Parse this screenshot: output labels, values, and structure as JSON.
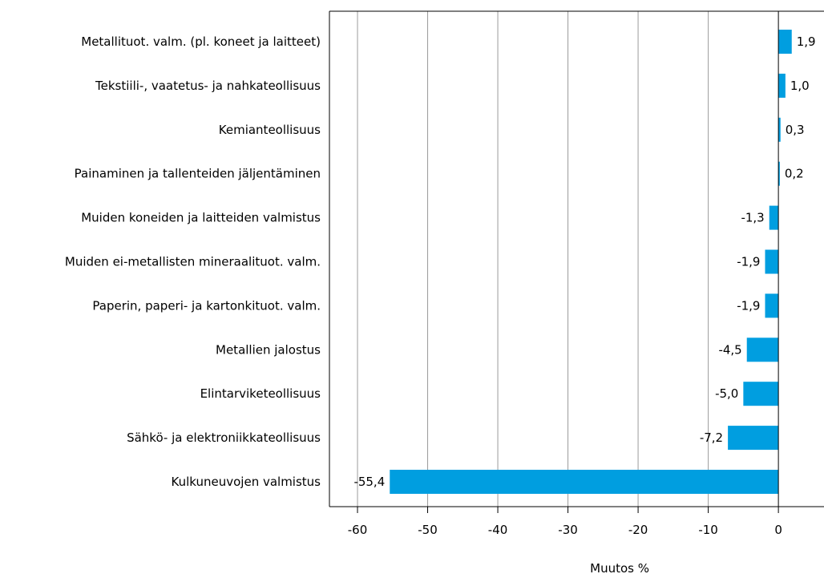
{
  "chart_data": {
    "type": "bar",
    "orientation": "horizontal",
    "title": "",
    "xlabel": "Muutos %",
    "ylabel": "",
    "categories": [
      "Metallituot. valm. (pl. koneet ja laitteet)",
      "Tekstiili-, vaatetus- ja nahkateollisuus",
      "Kemianteollisuus",
      "Painaminen ja tallenteiden jäljentäminen",
      "Muiden koneiden ja laitteiden valmistus",
      "Muiden ei-metallisten mineraalituot. valm.",
      "Paperin, paperi- ja kartonkituot. valm.",
      "Metallien jalostus",
      "Elintarviketeollisuus",
      "Sähkö- ja elektroniikkateollisuus",
      "Kulkuneuvojen valmistus"
    ],
    "values": [
      1.9,
      1.0,
      0.3,
      0.2,
      -1.3,
      -1.9,
      -1.9,
      -4.5,
      -5.0,
      -7.2,
      -55.4
    ],
    "value_labels": [
      "1,9",
      "1,0",
      "0,3",
      "0,2",
      "-1,3",
      "-1,9",
      "-1,9",
      "-4,5",
      "-5,0",
      "-7,2",
      "-55,4"
    ],
    "xlim": [
      -64,
      6.5
    ],
    "ticks": [
      -60,
      -50,
      -40,
      -30,
      -20,
      -10,
      0
    ],
    "tick_labels": [
      "-60",
      "-50",
      "-40",
      "-30",
      "-20",
      "-10",
      "0"
    ],
    "grid": true,
    "legend": "none",
    "colors": {
      "bar": "#009ee0",
      "grid": "#9b9b9b",
      "axis": "#000000",
      "background": "#ffffff"
    }
  }
}
